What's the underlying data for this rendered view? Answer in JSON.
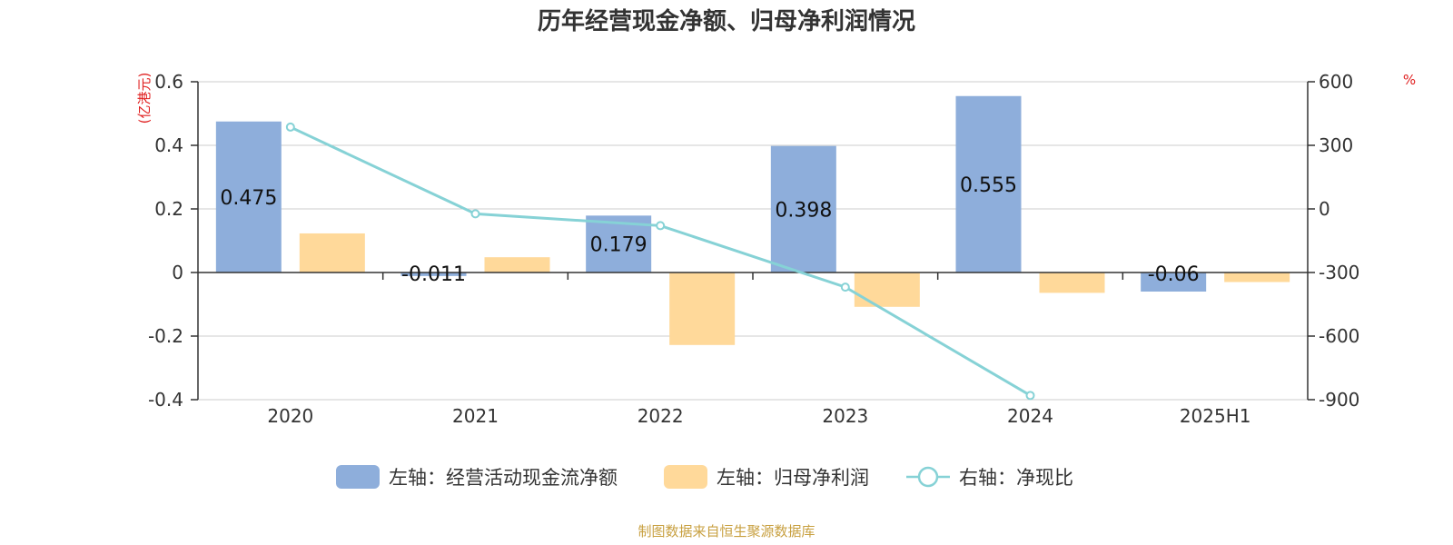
{
  "chart_data": {
    "type": "bar",
    "title": "历年经营现金净额、归母净利润情况",
    "categories": [
      "2020",
      "2021",
      "2022",
      "2023",
      "2024",
      "2025H1"
    ],
    "series": [
      {
        "name": "左轴：经营活动现金流净额",
        "kind": "bar",
        "axis": "left",
        "color": "#8eaedb",
        "values": [
          0.475,
          -0.011,
          0.179,
          0.398,
          0.555,
          -0.06
        ],
        "labels": [
          "0.475",
          "-0.011",
          "0.179",
          "0.398",
          "0.555",
          "-0.06"
        ]
      },
      {
        "name": "左轴：归母净利润",
        "kind": "bar",
        "axis": "left",
        "color": "#ffd99a",
        "values": [
          0.123,
          0.048,
          -0.228,
          -0.108,
          -0.064,
          -0.03
        ]
      },
      {
        "name": "右轴：净现比",
        "kind": "line",
        "axis": "right",
        "color": "#86d2d6",
        "values": [
          386,
          -23,
          -79,
          -369,
          -880,
          null
        ]
      }
    ],
    "y_left": {
      "unit": "(亿港元)",
      "min": -0.4,
      "max": 0.6,
      "ticks": [
        0.6,
        0.4,
        0.2,
        0,
        -0.2,
        -0.4
      ],
      "tick_labels": [
        "0.6",
        "0.4",
        "0.2",
        "0",
        "-0.2",
        "-0.4"
      ]
    },
    "y_right": {
      "unit": "%",
      "min": -900,
      "max": 600,
      "ticks": [
        600,
        300,
        0,
        -300,
        -600,
        -900
      ],
      "tick_labels": [
        "600",
        "300",
        "0",
        "-300",
        "-600",
        "-900"
      ]
    },
    "grid": true,
    "legend_position": "bottom",
    "unit_color": "#e02020",
    "source": "制图数据来自恒生聚源数据库",
    "source_color": "#c8a040"
  }
}
